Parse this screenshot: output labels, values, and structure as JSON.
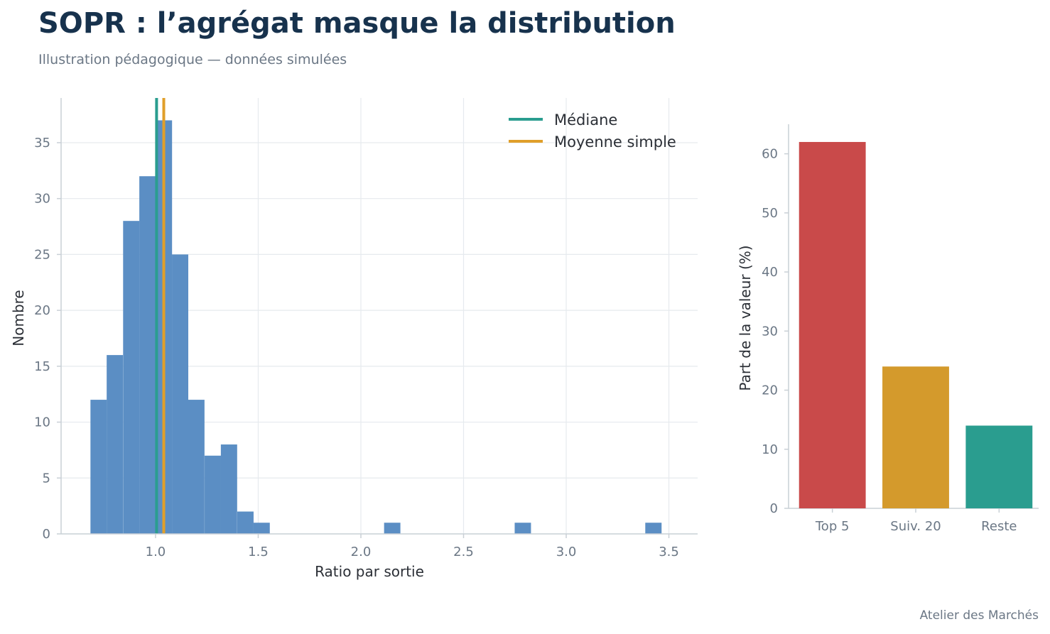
{
  "header": {
    "title": "SOPR : l’agrégat masque la distribution",
    "subtitle": "Illustration pédagogique — données simulées"
  },
  "footer": {
    "credit": "Atelier des Marchés"
  },
  "colors": {
    "hist": "#5b8ec4",
    "median": "#2a9d8f",
    "mean": "#e09f2a",
    "grid": "#e6eaee",
    "axis": "#c9d0d6",
    "bar_top5": "#c94a4a",
    "bar_next20": "#d49a2c",
    "bar_rest": "#2a9d8f"
  },
  "chart_data": [
    {
      "type": "histogram",
      "xlabel": "Ratio par sortie",
      "ylabel": "Nombre",
      "xlim": [
        0.54,
        3.64
      ],
      "ylim": [
        0,
        39
      ],
      "xticks": [
        1.0,
        1.5,
        2.0,
        2.5,
        3.0,
        3.5
      ],
      "xtick_labels": [
        "1.0",
        "1.5",
        "2.0",
        "2.5",
        "3.0",
        "3.5"
      ],
      "yticks": [
        0,
        5,
        10,
        15,
        20,
        25,
        30,
        35
      ],
      "bin_width": 0.0794,
      "bins_start": [
        0.683,
        0.762,
        0.842,
        0.921,
        1.001,
        1.08,
        1.159,
        1.239,
        1.318,
        1.398,
        1.477,
        2.113,
        2.749,
        3.385
      ],
      "counts": [
        12,
        16,
        28,
        32,
        37,
        25,
        12,
        7,
        8,
        2,
        1,
        1,
        1,
        1
      ],
      "median": 1.005,
      "mean": 1.04,
      "legend": [
        "Médiane",
        "Moyenne simple"
      ],
      "legend_position": "top-right",
      "grid": true
    },
    {
      "type": "bar",
      "categories": [
        "Top 5",
        "Suiv. 20",
        "Reste"
      ],
      "values": [
        62,
        24,
        14
      ],
      "ylabel": "Part de la valeur (%)",
      "ylim": [
        0,
        65
      ],
      "yticks": [
        0,
        10,
        20,
        30,
        40,
        50,
        60
      ],
      "grid": false
    }
  ]
}
